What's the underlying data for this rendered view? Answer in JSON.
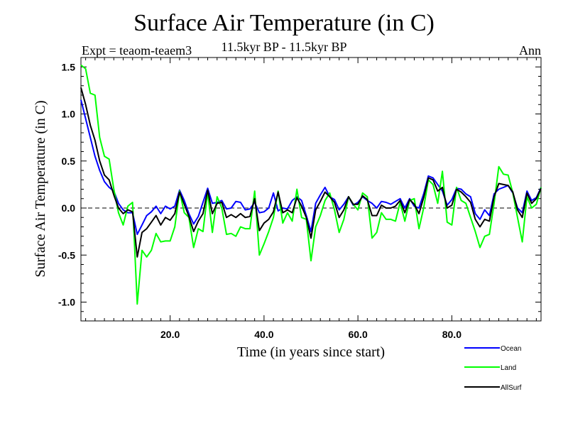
{
  "chart_data": {
    "type": "line",
    "title": "Surface Air Temperature (in C)",
    "subtitle": "11.5kyr BP - 11.5kyr BP",
    "experiment_label": "Expt = teaom-teaem3",
    "season_label": "Ann",
    "xlabel": "Time (in years since start)",
    "ylabel": "Surface Air Temperature (in C)",
    "xlim": [
      1,
      99
    ],
    "ylim": [
      -1.2,
      1.6
    ],
    "xticks": [
      20,
      40,
      60,
      80
    ],
    "xtick_labels": [
      "20.0",
      "40.0",
      "60.0",
      "80.0"
    ],
    "yticks": [
      -1.0,
      -0.5,
      0.0,
      0.5,
      1.0,
      1.5
    ],
    "ytick_labels": [
      "-1.0",
      "-0.5",
      "0.0",
      "0.5",
      "1.0",
      "1.5"
    ],
    "reference_line": 0.0,
    "x": [
      1,
      2,
      3,
      4,
      5,
      6,
      7,
      8,
      9,
      10,
      11,
      12,
      13,
      14,
      15,
      16,
      17,
      18,
      19,
      20,
      21,
      22,
      23,
      24,
      25,
      26,
      27,
      28,
      29,
      30,
      31,
      32,
      33,
      34,
      35,
      36,
      37,
      38,
      39,
      40,
      41,
      42,
      43,
      44,
      45,
      46,
      47,
      48,
      49,
      50,
      51,
      52,
      53,
      54,
      55,
      56,
      57,
      58,
      59,
      60,
      61,
      62,
      63,
      64,
      65,
      66,
      67,
      68,
      69,
      70,
      71,
      72,
      73,
      74,
      75,
      76,
      77,
      78,
      79,
      80,
      81,
      82,
      83,
      84,
      85,
      86,
      87,
      88,
      89,
      90,
      91,
      92,
      93,
      94,
      95,
      96,
      97,
      98,
      99
    ],
    "series": [
      {
        "name": "Ocean",
        "color": "#0000ff",
        "values": [
          1.15,
          0.95,
          0.75,
          0.55,
          0.4,
          0.28,
          0.22,
          0.18,
          0.05,
          -0.02,
          -0.05,
          -0.05,
          -0.28,
          -0.18,
          -0.08,
          -0.04,
          0.02,
          -0.06,
          0.02,
          -0.01,
          0.02,
          0.19,
          0.08,
          -0.06,
          -0.17,
          -0.09,
          0.06,
          0.21,
          0.05,
          0.06,
          0.08,
          -0.01,
          0.0,
          0.07,
          0.06,
          -0.02,
          -0.01,
          0.06,
          -0.05,
          -0.04,
          0.0,
          0.16,
          -0.03,
          0.0,
          -0.01,
          0.08,
          0.12,
          0.08,
          -0.08,
          -0.25,
          0.05,
          0.14,
          0.22,
          0.12,
          0.09,
          -0.02,
          0.04,
          0.12,
          0.03,
          0.06,
          0.12,
          0.08,
          0.05,
          0.0,
          0.07,
          0.06,
          0.04,
          0.07,
          0.1,
          0.0,
          0.1,
          0.02,
          0.0,
          0.15,
          0.34,
          0.32,
          0.25,
          0.18,
          0.03,
          0.09,
          0.21,
          0.2,
          0.15,
          0.12,
          -0.06,
          -0.12,
          -0.02,
          -0.08,
          0.15,
          0.2,
          0.22,
          0.24,
          0.16,
          0.0,
          -0.05,
          0.18,
          0.08,
          0.11,
          0.22
        ]
      },
      {
        "name": "Land",
        "color": "#00ff00",
        "values": [
          1.52,
          1.48,
          1.22,
          1.2,
          0.75,
          0.55,
          0.52,
          0.2,
          -0.05,
          -0.18,
          0.02,
          0.06,
          -1.02,
          -0.45,
          -0.52,
          -0.45,
          -0.27,
          -0.36,
          -0.35,
          -0.35,
          -0.2,
          0.18,
          -0.05,
          -0.1,
          -0.42,
          -0.22,
          -0.25,
          0.17,
          -0.26,
          0.12,
          0.0,
          -0.28,
          -0.27,
          -0.3,
          -0.2,
          -0.22,
          -0.22,
          0.18,
          -0.5,
          -0.38,
          -0.25,
          -0.1,
          0.18,
          -0.16,
          -0.05,
          -0.14,
          0.2,
          -0.1,
          -0.12,
          -0.56,
          -0.2,
          -0.08,
          0.08,
          0.16,
          -0.02,
          -0.26,
          -0.12,
          0.12,
          0.04,
          -0.02,
          0.16,
          0.12,
          -0.32,
          -0.26,
          -0.05,
          -0.12,
          -0.12,
          -0.14,
          0.06,
          -0.14,
          0.08,
          0.1,
          -0.22,
          0.0,
          0.3,
          0.25,
          0.05,
          0.39,
          -0.15,
          -0.18,
          0.22,
          0.08,
          0.05,
          -0.1,
          -0.25,
          -0.42,
          -0.3,
          -0.28,
          0.05,
          0.44,
          0.36,
          0.35,
          0.16,
          -0.1,
          -0.36,
          0.12,
          0.0,
          0.04,
          0.22
        ]
      },
      {
        "name": "AllSurf",
        "color": "#000000",
        "values": [
          1.28,
          1.1,
          0.88,
          0.72,
          0.5,
          0.35,
          0.3,
          0.14,
          0.0,
          -0.06,
          -0.02,
          -0.04,
          -0.52,
          -0.26,
          -0.22,
          -0.15,
          -0.08,
          -0.18,
          -0.1,
          -0.13,
          -0.06,
          0.17,
          0.04,
          -0.09,
          -0.25,
          -0.14,
          -0.06,
          0.19,
          -0.06,
          0.05,
          0.06,
          -0.1,
          -0.07,
          -0.1,
          -0.06,
          -0.1,
          -0.09,
          0.1,
          -0.24,
          -0.16,
          -0.12,
          -0.04,
          0.17,
          -0.05,
          -0.02,
          -0.05,
          0.11,
          0.02,
          -0.1,
          -0.32,
          -0.02,
          0.07,
          0.17,
          0.12,
          0.06,
          -0.1,
          -0.02,
          0.12,
          0.04,
          0.04,
          0.13,
          0.09,
          -0.08,
          -0.08,
          0.03,
          0.0,
          0.0,
          0.02,
          0.08,
          -0.05,
          0.09,
          0.04,
          -0.06,
          0.11,
          0.32,
          0.3,
          0.18,
          0.22,
          0.0,
          0.03,
          0.2,
          0.17,
          0.12,
          0.06,
          -0.12,
          -0.2,
          -0.12,
          -0.14,
          0.12,
          0.26,
          0.25,
          0.24,
          0.17,
          -0.02,
          -0.1,
          0.16,
          0.05,
          0.1,
          0.21
        ]
      }
    ]
  }
}
